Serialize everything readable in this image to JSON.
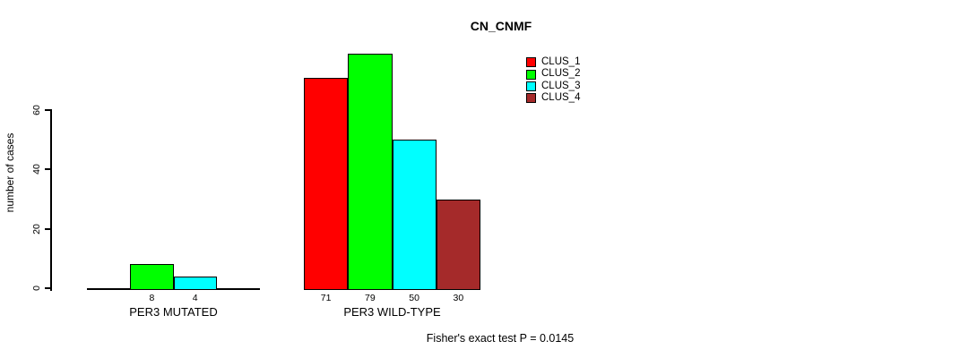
{
  "chart_data": {
    "type": "bar",
    "title": "CN_CNMF",
    "ylabel": "number of cases",
    "xlabel": "",
    "ylim": [
      0,
      60
    ],
    "yticks": [
      0,
      20,
      40,
      60
    ],
    "grid": false,
    "legend_position": "top-right",
    "show_value_labels_below_bars": true,
    "series": [
      {
        "name": "CLUS_1",
        "color": "#FF0000"
      },
      {
        "name": "CLUS_2",
        "color": "#00FF00"
      },
      {
        "name": "CLUS_3",
        "color": "#00FFFF"
      },
      {
        "name": "CLUS_4",
        "color": "#A52A2A"
      }
    ],
    "groups": [
      {
        "label": "PER3 MUTATED",
        "values": [
          0,
          8,
          4,
          0
        ]
      },
      {
        "label": "PER3 WILD-TYPE",
        "values": [
          71,
          79,
          50,
          30
        ]
      }
    ],
    "footnote": "Fisher's exact test P = 0.0145"
  }
}
